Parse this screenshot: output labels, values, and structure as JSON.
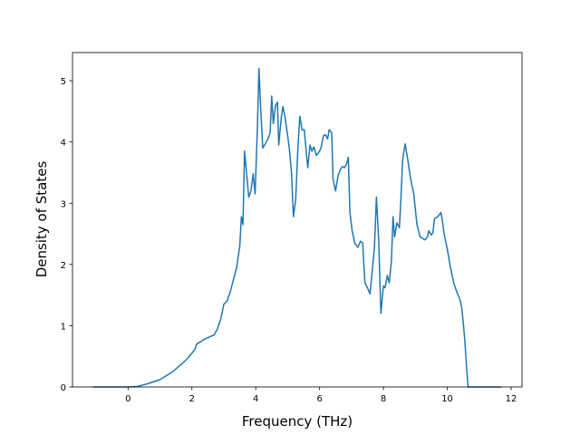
{
  "chart_data": {
    "type": "line",
    "xlabel": "Frequency (THz)",
    "ylabel": "Density of States",
    "xlim": [
      -1.74,
      12.34
    ],
    "ylim": [
      0,
      5.46
    ],
    "xticks": [
      0,
      2,
      4,
      6,
      8,
      10,
      12
    ],
    "yticks": [
      0,
      1,
      2,
      3,
      4,
      5
    ],
    "series": [
      {
        "color": "#1f77b4",
        "x": [
          -1.1,
          0,
          0.3,
          0.6,
          1.0,
          1.4,
          1.8,
          2.0,
          2.1,
          2.15,
          2.4,
          2.6,
          2.7,
          2.8,
          2.9,
          3.0,
          3.1,
          3.2,
          3.3,
          3.4,
          3.5,
          3.55,
          3.6,
          3.65,
          3.72,
          3.78,
          3.85,
          3.92,
          3.98,
          4.05,
          4.1,
          4.15,
          4.22,
          4.3,
          4.38,
          4.45,
          4.5,
          4.55,
          4.62,
          4.68,
          4.72,
          4.8,
          4.85,
          4.92,
          5.0,
          5.05,
          5.12,
          5.18,
          5.25,
          5.32,
          5.38,
          5.45,
          5.52,
          5.58,
          5.63,
          5.7,
          5.76,
          5.82,
          5.9,
          6.0,
          6.05,
          6.12,
          6.18,
          6.25,
          6.3,
          6.38,
          6.42,
          6.5,
          6.58,
          6.65,
          6.72,
          6.78,
          6.85,
          6.9,
          6.95,
          7.02,
          7.1,
          7.2,
          7.28,
          7.35,
          7.42,
          7.5,
          7.58,
          7.66,
          7.72,
          7.78,
          7.85,
          7.92,
          8.0,
          8.05,
          8.12,
          8.18,
          8.25,
          8.3,
          8.35,
          8.42,
          8.5,
          8.55,
          8.6,
          8.68,
          8.75,
          8.85,
          8.95,
          9.05,
          9.15,
          9.3,
          9.38,
          9.42,
          9.5,
          9.55,
          9.6,
          9.7,
          9.8,
          9.85,
          9.9,
          10.0,
          10.1,
          10.2,
          10.3,
          10.4,
          10.45,
          10.5,
          10.55,
          10.6,
          10.65,
          11.7
        ],
        "values": [
          0,
          0,
          0.01,
          0.05,
          0.12,
          0.25,
          0.43,
          0.55,
          0.62,
          0.7,
          0.78,
          0.83,
          0.85,
          0.95,
          1.1,
          1.35,
          1.4,
          1.55,
          1.75,
          1.95,
          2.3,
          2.78,
          2.65,
          3.85,
          3.45,
          3.1,
          3.2,
          3.48,
          3.15,
          4.2,
          5.2,
          4.6,
          3.9,
          3.97,
          4.05,
          4.15,
          4.75,
          4.3,
          4.6,
          4.65,
          3.95,
          4.4,
          4.58,
          4.4,
          4.1,
          3.9,
          3.5,
          2.78,
          3.05,
          3.9,
          4.42,
          4.2,
          4.2,
          3.85,
          3.58,
          3.95,
          3.85,
          3.92,
          3.78,
          3.85,
          3.92,
          4.1,
          4.12,
          4.05,
          4.2,
          4.15,
          3.4,
          3.2,
          3.45,
          3.55,
          3.6,
          3.58,
          3.65,
          3.75,
          2.85,
          2.55,
          2.35,
          2.28,
          2.38,
          2.35,
          1.7,
          1.62,
          1.52,
          1.95,
          2.3,
          3.1,
          2.4,
          1.2,
          1.65,
          1.62,
          1.82,
          1.7,
          2.05,
          2.78,
          2.45,
          2.68,
          2.6,
          3.1,
          3.7,
          3.97,
          3.75,
          3.4,
          3.15,
          2.65,
          2.45,
          2.4,
          2.45,
          2.55,
          2.48,
          2.52,
          2.75,
          2.78,
          2.85,
          2.7,
          2.5,
          2.25,
          1.95,
          1.7,
          1.55,
          1.42,
          1.3,
          1.05,
          0.75,
          0.35,
          0,
          0
        ]
      }
    ]
  }
}
